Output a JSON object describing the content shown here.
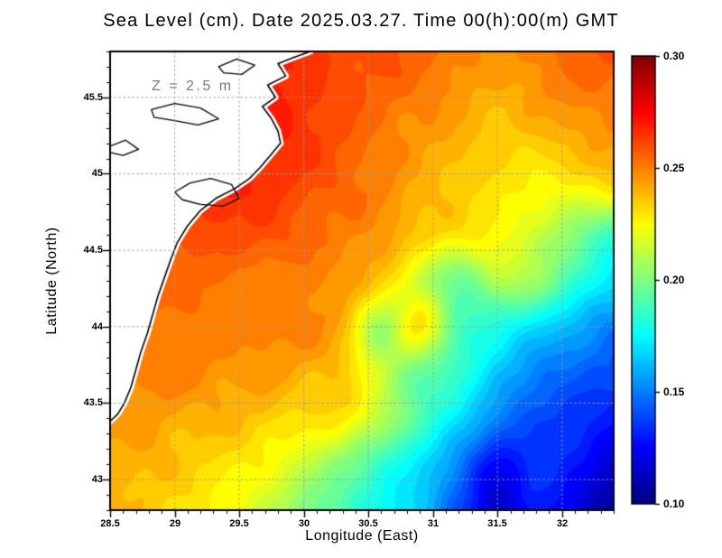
{
  "chart_data": {
    "type": "heatmap",
    "title": "Sea Level (cm). Date 2025.03.27. Time 00(h):00(m) GMT",
    "annotation": "Z = 2.5 m",
    "xlabel": "Longitude (East)",
    "ylabel": "Latitude (North)",
    "xlim": [
      28.5,
      32.4
    ],
    "ylim": [
      42.8,
      45.8
    ],
    "xticks": [
      28.5,
      29,
      29.5,
      30,
      30.5,
      31,
      31.5,
      32
    ],
    "xtick_labels": [
      "28.5",
      "29",
      "29.5",
      "30",
      "30.5",
      "31",
      "31.5",
      "32"
    ],
    "yticks": [
      43,
      43.5,
      44,
      44.5,
      45,
      45.5
    ],
    "ytick_labels": [
      "43",
      "43.5",
      "44",
      "44.5",
      "45",
      "45.5"
    ],
    "grid": true,
    "grid_style": "dotted",
    "colormap": "jet",
    "value_range": [
      0.1,
      0.3
    ],
    "colorbar_tick_values": [
      0.1,
      0.15,
      0.2,
      0.25,
      0.3
    ],
    "colorbar_tick_labels": [
      "0.10",
      "0.15",
      "0.20",
      "0.25",
      "0.30"
    ],
    "colorbar_end_colors": {
      "low": "#00008b",
      "high": "#8b0000"
    },
    "lon": [
      28.5,
      28.8,
      29.1,
      29.4,
      29.7,
      30.0,
      30.3,
      30.6,
      30.9,
      31.2,
      31.5,
      31.8,
      32.1,
      32.4
    ],
    "lat": [
      45.8,
      45.5,
      45.2,
      44.9,
      44.6,
      44.3,
      44.0,
      43.7,
      43.4,
      43.1,
      42.8
    ],
    "values": [
      [
        0.26,
        0.26,
        0.26,
        0.265,
        0.27,
        0.265,
        0.26,
        0.26,
        0.255,
        0.25,
        0.245,
        0.25,
        0.255,
        0.26
      ],
      [
        0.26,
        0.26,
        0.262,
        0.266,
        0.27,
        0.265,
        0.26,
        0.255,
        0.25,
        0.245,
        0.24,
        0.245,
        0.25,
        0.25
      ],
      [
        0.26,
        0.262,
        0.265,
        0.27,
        0.27,
        0.265,
        0.258,
        0.25,
        0.245,
        0.24,
        0.235,
        0.235,
        0.24,
        0.245
      ],
      [
        0.26,
        0.262,
        0.265,
        0.27,
        0.265,
        0.26,
        0.255,
        0.25,
        0.24,
        0.235,
        0.23,
        0.225,
        0.225,
        0.23
      ],
      [
        0.258,
        0.26,
        0.26,
        0.26,
        0.26,
        0.255,
        0.25,
        0.245,
        0.235,
        0.23,
        0.225,
        0.215,
        0.2,
        0.185
      ],
      [
        0.255,
        0.255,
        0.255,
        0.252,
        0.25,
        0.25,
        0.245,
        0.235,
        0.215,
        0.195,
        0.21,
        0.205,
        0.185,
        0.17
      ],
      [
        0.255,
        0.252,
        0.25,
        0.25,
        0.25,
        0.25,
        0.24,
        0.205,
        0.23,
        0.19,
        0.18,
        0.17,
        0.16,
        0.15
      ],
      [
        0.25,
        0.25,
        0.25,
        0.245,
        0.245,
        0.24,
        0.235,
        0.215,
        0.195,
        0.185,
        0.165,
        0.15,
        0.145,
        0.14
      ],
      [
        0.245,
        0.245,
        0.24,
        0.24,
        0.235,
        0.23,
        0.23,
        0.21,
        0.19,
        0.17,
        0.15,
        0.14,
        0.135,
        0.13
      ],
      [
        0.24,
        0.24,
        0.235,
        0.23,
        0.225,
        0.215,
        0.2,
        0.185,
        0.17,
        0.15,
        0.125,
        0.135,
        0.13,
        0.115
      ],
      [
        0.24,
        0.235,
        0.23,
        0.225,
        0.215,
        0.2,
        0.19,
        0.175,
        0.165,
        0.14,
        0.115,
        0.13,
        0.12,
        0.105
      ]
    ],
    "coastline": [
      [
        30.05,
        45.8
      ],
      [
        29.92,
        45.76
      ],
      [
        29.8,
        45.72
      ],
      [
        29.86,
        45.64
      ],
      [
        29.72,
        45.58
      ],
      [
        29.78,
        45.5
      ],
      [
        29.68,
        45.44
      ],
      [
        29.75,
        45.36
      ],
      [
        29.8,
        45.28
      ],
      [
        29.82,
        45.2
      ],
      [
        29.74,
        45.12
      ],
      [
        29.66,
        45.04
      ],
      [
        29.58,
        44.97
      ],
      [
        29.46,
        44.9
      ],
      [
        29.32,
        44.84
      ],
      [
        29.2,
        44.76
      ],
      [
        29.1,
        44.66
      ],
      [
        29.02,
        44.55
      ],
      [
        28.97,
        44.44
      ],
      [
        28.92,
        44.32
      ],
      [
        28.87,
        44.2
      ],
      [
        28.83,
        44.08
      ],
      [
        28.79,
        43.96
      ],
      [
        28.74,
        43.84
      ],
      [
        28.7,
        43.72
      ],
      [
        28.66,
        43.6
      ],
      [
        28.61,
        43.5
      ],
      [
        28.56,
        43.43
      ],
      [
        28.5,
        43.38
      ]
    ],
    "lakes": [
      [
        [
          29.0,
          44.88
        ],
        [
          29.12,
          44.94
        ],
        [
          29.28,
          44.97
        ],
        [
          29.44,
          44.93
        ],
        [
          29.5,
          44.84
        ],
        [
          29.38,
          44.79
        ],
        [
          29.2,
          44.8
        ],
        [
          29.06,
          44.83
        ],
        [
          29.0,
          44.88
        ]
      ],
      [
        [
          28.82,
          45.42
        ],
        [
          29.0,
          45.46
        ],
        [
          29.2,
          45.43
        ],
        [
          29.34,
          45.36
        ],
        [
          29.18,
          45.32
        ],
        [
          28.98,
          45.35
        ],
        [
          28.84,
          45.37
        ],
        [
          28.82,
          45.42
        ]
      ],
      [
        [
          29.34,
          45.7
        ],
        [
          29.48,
          45.75
        ],
        [
          29.62,
          45.71
        ],
        [
          29.52,
          45.65
        ],
        [
          29.38,
          45.66
        ],
        [
          29.34,
          45.7
        ]
      ],
      [
        [
          28.5,
          45.18
        ],
        [
          28.62,
          45.22
        ],
        [
          28.72,
          45.16
        ],
        [
          28.6,
          45.12
        ],
        [
          28.5,
          45.14
        ],
        [
          28.5,
          45.18
        ]
      ]
    ]
  }
}
